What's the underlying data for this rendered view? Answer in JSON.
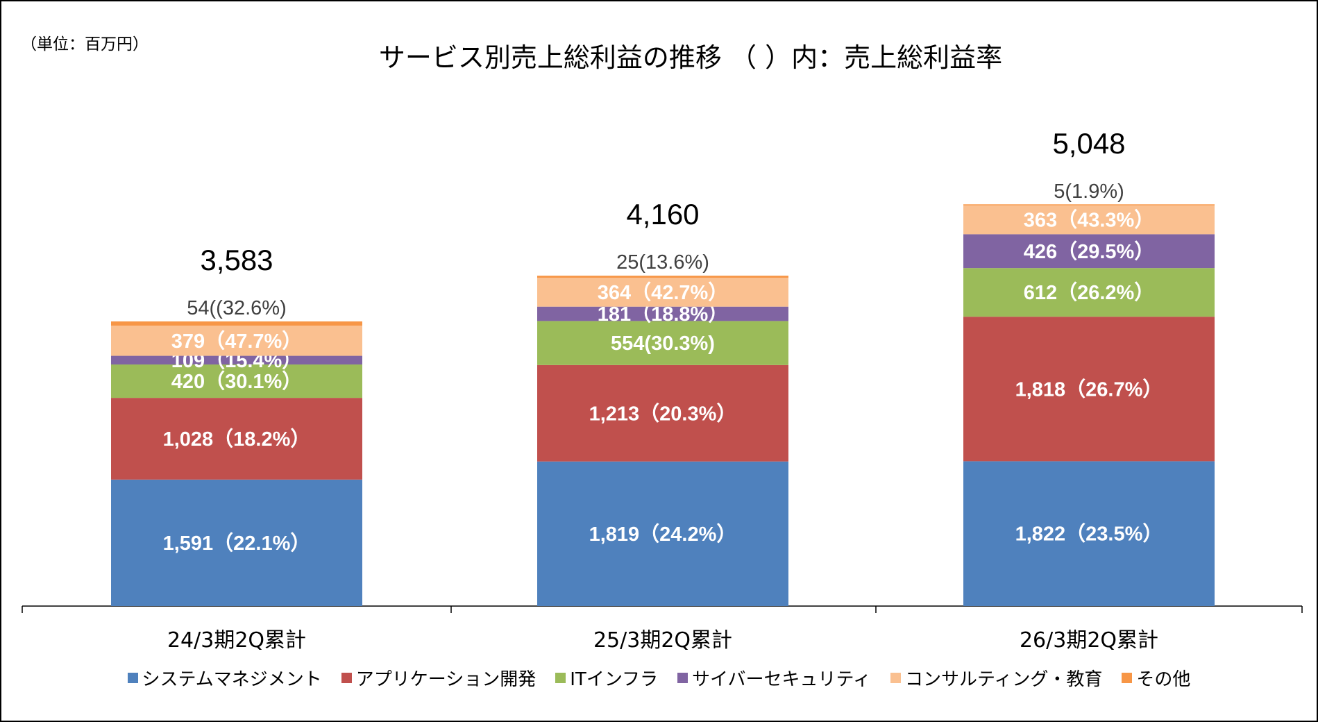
{
  "unit_label": "（単位：百万円）",
  "chart_data": {
    "type": "bar",
    "stacked": true,
    "title": "サービス別売上総利益の推移 （ ）内：売上総利益率",
    "categories": [
      "24/3期2Q累計",
      "25/3期2Q累計",
      "26/3期2Q累計"
    ],
    "totals": [
      3583,
      4160,
      5048
    ],
    "total_labels": [
      "3,583",
      "4,160",
      "5,048"
    ],
    "series": [
      {
        "name": "システムマネジメント",
        "color": "#4F81BD",
        "label_color": "#FFFFFF",
        "values": [
          1591,
          1819,
          1822
        ],
        "labels": [
          "1,591（22.1%）",
          "1,819（24.2%）",
          "1,822（23.5%）"
        ]
      },
      {
        "name": "アプリケーション開発",
        "color": "#C0504D",
        "label_color": "#FFFFFF",
        "values": [
          1028,
          1213,
          1818
        ],
        "labels": [
          "1,028（18.2%）",
          "1,213（20.3%）",
          "1,818（26.7%）"
        ]
      },
      {
        "name": "ITインフラ",
        "color": "#9BBB59",
        "label_color": "#FFFFFF",
        "values": [
          420,
          554,
          612
        ],
        "labels": [
          "420（30.1%）",
          "554(30.3%)",
          "612（26.2%）"
        ]
      },
      {
        "name": "サイバーセキュリティ",
        "color": "#8064A2",
        "label_color": "#FFFFFF",
        "values": [
          109,
          181,
          426
        ],
        "labels": [
          "109（15.4%）",
          "181（18.8%）",
          "426（29.5%）"
        ]
      },
      {
        "name": "コンサルティング・教育",
        "color": "#FAC090",
        "label_color": "#FFFFFF",
        "values": [
          379,
          364,
          363
        ],
        "labels": [
          "379（47.7%）",
          "364（42.7%）",
          "363（43.3%）"
        ]
      },
      {
        "name": "その他",
        "color": "#F79646",
        "label_color": "#404040",
        "values": [
          54,
          25,
          5
        ],
        "labels": [
          "54((32.6%)",
          "25(13.6%)",
          "5(1.9%)"
        ]
      }
    ],
    "ylim": [
      0,
      5048
    ],
    "grid": false,
    "legend_position": "bottom"
  }
}
